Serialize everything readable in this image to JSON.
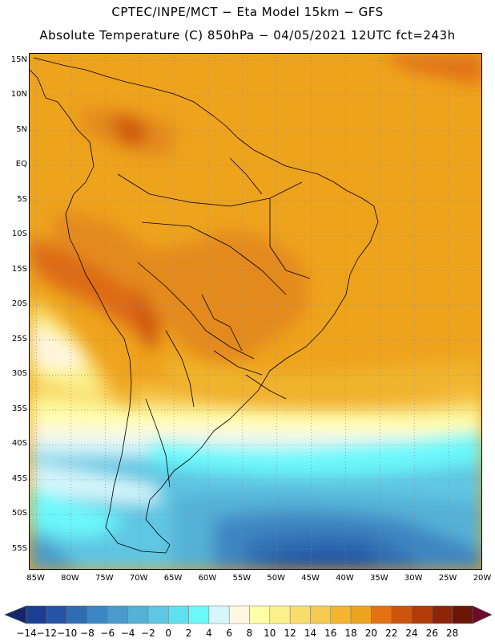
{
  "header": {
    "line1": "CPTEC/INPE/MCT −  Eta Model 15km − GFS",
    "line2": "Absolute Temperature (C) 850hPa − 04/05/2021 12UTC fct=243h"
  },
  "map": {
    "region": "South America",
    "lat_range": [
      -58,
      16
    ],
    "lon_range": [
      -86,
      -20
    ],
    "lat_ticks": [
      {
        "value": 15,
        "label": "15N"
      },
      {
        "value": 10,
        "label": "10N"
      },
      {
        "value": 5,
        "label": "5N"
      },
      {
        "value": 0,
        "label": "EQ"
      },
      {
        "value": -5,
        "label": "5S"
      },
      {
        "value": -10,
        "label": "10S"
      },
      {
        "value": -15,
        "label": "15S"
      },
      {
        "value": -20,
        "label": "20S"
      },
      {
        "value": -25,
        "label": "25S"
      },
      {
        "value": -30,
        "label": "30S"
      },
      {
        "value": -35,
        "label": "35S"
      },
      {
        "value": -40,
        "label": "40S"
      },
      {
        "value": -45,
        "label": "45S"
      },
      {
        "value": -50,
        "label": "50S"
      },
      {
        "value": -55,
        "label": "55S"
      }
    ],
    "lon_ticks": [
      {
        "value": -85,
        "label": "85W"
      },
      {
        "value": -80,
        "label": "80W"
      },
      {
        "value": -75,
        "label": "75W"
      },
      {
        "value": -70,
        "label": "70W"
      },
      {
        "value": -65,
        "label": "65W"
      },
      {
        "value": -60,
        "label": "60W"
      },
      {
        "value": -55,
        "label": "55W"
      },
      {
        "value": -50,
        "label": "50W"
      },
      {
        "value": -45,
        "label": "45W"
      },
      {
        "value": -40,
        "label": "40W"
      },
      {
        "value": -35,
        "label": "35W"
      },
      {
        "value": -30,
        "label": "30W"
      },
      {
        "value": -25,
        "label": "25W"
      },
      {
        "value": -20,
        "label": "20W"
      }
    ]
  },
  "legend": {
    "labels": [
      "−14",
      "−12",
      "−10",
      "−8",
      "−6",
      "−4",
      "−2",
      "0",
      "2",
      "4",
      "6",
      "8",
      "10",
      "12",
      "14",
      "16",
      "18",
      "20",
      "22",
      "24",
      "26",
      "28"
    ],
    "colors": [
      "#1c3f94",
      "#2355a4",
      "#2f6db3",
      "#3c86c3",
      "#4a9bcb",
      "#55b1d6",
      "#5fc6e3",
      "#5ee0ee",
      "#6af8fb",
      "#d5f6fb",
      "#fff7e0",
      "#ffffa8",
      "#fbf08a",
      "#f9dd6c",
      "#f6c94f",
      "#f1b52e",
      "#eea31d",
      "#e27213",
      "#cd540d",
      "#b23b08",
      "#8e2508",
      "#6b1708"
    ],
    "low_arrow_color": "#15276a",
    "high_arrow_color": "#6d0a2e"
  }
}
